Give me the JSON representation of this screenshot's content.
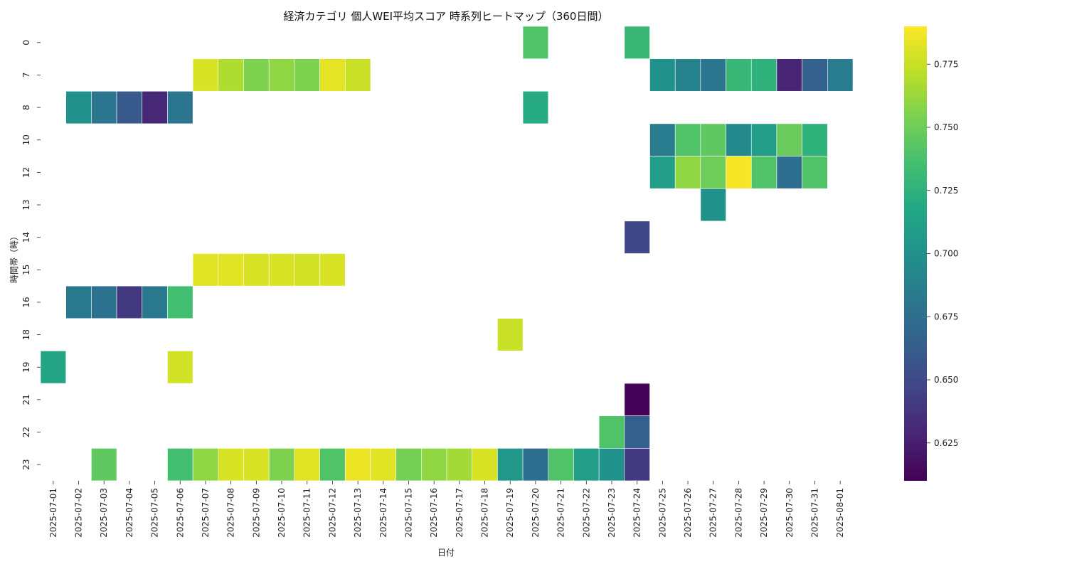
{
  "chart_data": {
    "type": "heatmap",
    "title": "経済カテゴリ 個人WEI平均スコア 時系列ヒートマップ（360日間）",
    "xlabel": "日付",
    "ylabel": "時間帯（時）",
    "x": [
      "2025-07-01",
      "2025-07-02",
      "2025-07-03",
      "2025-07-04",
      "2025-07-05",
      "2025-07-06",
      "2025-07-07",
      "2025-07-08",
      "2025-07-09",
      "2025-07-10",
      "2025-07-11",
      "2025-07-12",
      "2025-07-13",
      "2025-07-14",
      "2025-07-15",
      "2025-07-16",
      "2025-07-17",
      "2025-07-18",
      "2025-07-19",
      "2025-07-20",
      "2025-07-21",
      "2025-07-22",
      "2025-07-23",
      "2025-07-24",
      "2025-07-25",
      "2025-07-26",
      "2025-07-27",
      "2025-07-28",
      "2025-07-29",
      "2025-07-30",
      "2025-07-31",
      "2025-08-01"
    ],
    "y": [
      "0",
      "7",
      "8",
      "10",
      "12",
      "13",
      "14",
      "15",
      "16",
      "18",
      "19",
      "21",
      "22",
      "23"
    ],
    "values": [
      [
        null,
        null,
        null,
        null,
        null,
        null,
        null,
        null,
        null,
        null,
        null,
        null,
        null,
        null,
        null,
        null,
        null,
        null,
        null,
        0.74,
        null,
        null,
        null,
        0.73,
        null,
        null,
        null,
        null,
        null,
        null,
        null,
        null
      ],
      [
        null,
        null,
        null,
        null,
        null,
        null,
        0.78,
        0.768,
        0.755,
        0.76,
        0.755,
        0.783,
        0.775,
        null,
        null,
        null,
        null,
        null,
        null,
        null,
        null,
        null,
        null,
        null,
        0.7,
        0.69,
        0.68,
        0.73,
        0.725,
        0.628,
        0.665,
        0.685
      ],
      [
        null,
        0.7,
        0.68,
        0.66,
        0.63,
        0.68,
        null,
        null,
        null,
        null,
        null,
        null,
        null,
        null,
        null,
        null,
        null,
        null,
        null,
        0.72,
        null,
        null,
        null,
        null,
        null,
        null,
        null,
        null,
        null,
        null,
        null,
        null
      ],
      [
        null,
        null,
        null,
        null,
        null,
        null,
        null,
        null,
        null,
        null,
        null,
        null,
        null,
        null,
        null,
        null,
        null,
        null,
        null,
        null,
        null,
        null,
        null,
        null,
        0.685,
        0.74,
        0.745,
        0.695,
        0.71,
        0.748,
        0.725,
        null
      ],
      [
        null,
        null,
        null,
        null,
        null,
        null,
        null,
        null,
        null,
        null,
        null,
        null,
        null,
        null,
        null,
        null,
        null,
        null,
        null,
        null,
        null,
        null,
        null,
        null,
        0.71,
        0.76,
        0.75,
        0.788,
        0.74,
        0.675,
        0.74,
        null
      ],
      [
        null,
        null,
        null,
        null,
        null,
        null,
        null,
        null,
        null,
        null,
        null,
        null,
        null,
        null,
        null,
        null,
        null,
        null,
        null,
        null,
        null,
        null,
        null,
        null,
        null,
        null,
        0.7,
        null,
        null,
        null,
        null,
        null
      ],
      [
        null,
        null,
        null,
        null,
        null,
        null,
        null,
        null,
        null,
        null,
        null,
        null,
        null,
        null,
        null,
        null,
        null,
        null,
        null,
        null,
        null,
        null,
        null,
        0.648,
        null,
        null,
        null,
        null,
        null,
        null,
        null,
        null
      ],
      [
        null,
        null,
        null,
        null,
        null,
        null,
        0.782,
        0.782,
        0.78,
        0.78,
        0.778,
        0.78,
        null,
        null,
        null,
        null,
        null,
        null,
        null,
        null,
        null,
        null,
        null,
        null,
        null,
        null,
        null,
        null,
        null,
        null,
        null,
        null
      ],
      [
        null,
        0.683,
        0.678,
        0.64,
        0.682,
        0.735,
        null,
        null,
        null,
        null,
        null,
        null,
        null,
        null,
        null,
        null,
        null,
        null,
        null,
        null,
        null,
        null,
        null,
        null,
        null,
        null,
        null,
        null,
        null,
        null,
        null,
        null
      ],
      [
        null,
        null,
        null,
        null,
        null,
        null,
        null,
        null,
        null,
        null,
        null,
        null,
        null,
        null,
        null,
        null,
        null,
        null,
        0.775,
        null,
        null,
        null,
        null,
        null,
        null,
        null,
        null,
        null,
        null,
        null,
        null,
        null
      ],
      [
        0.715,
        null,
        null,
        null,
        null,
        0.778,
        null,
        null,
        null,
        null,
        null,
        null,
        null,
        null,
        null,
        null,
        null,
        null,
        null,
        null,
        null,
        null,
        null,
        null,
        null,
        null,
        null,
        null,
        null,
        null,
        null,
        null
      ],
      [
        null,
        null,
        null,
        null,
        null,
        null,
        null,
        null,
        null,
        null,
        null,
        null,
        null,
        null,
        null,
        null,
        null,
        null,
        null,
        null,
        null,
        null,
        null,
        0.612,
        null,
        null,
        null,
        null,
        null,
        null,
        null,
        null
      ],
      [
        null,
        null,
        null,
        null,
        null,
        null,
        null,
        null,
        null,
        null,
        null,
        null,
        null,
        null,
        null,
        null,
        null,
        null,
        null,
        null,
        null,
        null,
        0.74,
        0.665,
        null,
        null,
        null,
        null,
        null,
        null,
        null,
        null
      ],
      [
        null,
        null,
        0.745,
        null,
        null,
        0.735,
        0.76,
        0.78,
        0.78,
        0.755,
        0.782,
        0.74,
        0.785,
        0.782,
        0.752,
        0.76,
        0.765,
        0.78,
        0.705,
        0.675,
        0.74,
        0.71,
        0.7,
        0.64,
        null,
        null,
        null,
        null,
        null,
        null,
        null,
        null
      ]
    ],
    "colorbar": {
      "vmin": 0.61,
      "vmax": 0.79,
      "ticks": [
        "0.625",
        "0.650",
        "0.675",
        "0.700",
        "0.725",
        "0.750",
        "0.775"
      ],
      "colormap": "viridis"
    },
    "grid": false
  }
}
